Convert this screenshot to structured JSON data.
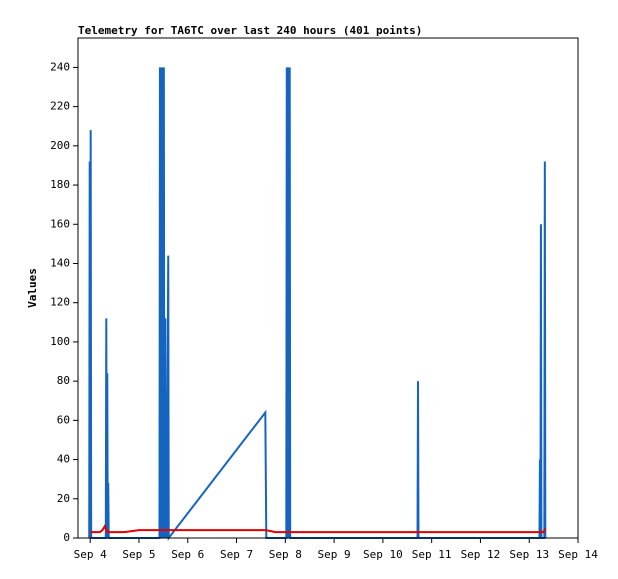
{
  "chart_data": {
    "type": "line",
    "title": "Telemetry for TA6TC over last 240 hours (401 points)",
    "y_label": "Values",
    "xlim": [
      3.75,
      14
    ],
    "xticks": [
      {
        "value": 4,
        "label": "Sep 4"
      },
      {
        "value": 5,
        "label": "Sep 5"
      },
      {
        "value": 6,
        "label": "Sep 6"
      },
      {
        "value": 7,
        "label": "Sep 7"
      },
      {
        "value": 8,
        "label": "Sep 8"
      },
      {
        "value": 9,
        "label": "Sep 9"
      },
      {
        "value": 10,
        "label": "Sep 10"
      },
      {
        "value": 11,
        "label": "Sep 11"
      },
      {
        "value": 12,
        "label": "Sep 12"
      },
      {
        "value": 13,
        "label": "Sep 13"
      },
      {
        "value": 14,
        "label": "Sep 14"
      }
    ],
    "ylim": [
      0,
      255
    ],
    "yticks": [
      0,
      20,
      40,
      60,
      80,
      100,
      120,
      140,
      160,
      180,
      200,
      220,
      240
    ],
    "series": [
      {
        "color": "#1565c0",
        "x": [
          3.98,
          3.99,
          4.0,
          4.01,
          4.02,
          4.32,
          4.33,
          4.34,
          4.35,
          4.36,
          4.37,
          4.38,
          5.42,
          5.43,
          5.45,
          5.46,
          5.48,
          5.49,
          5.5,
          5.51,
          5.52,
          5.54,
          5.55,
          5.56,
          5.57,
          5.6,
          5.61,
          7.59,
          7.61,
          8.02,
          8.03,
          8.05,
          8.06,
          8.08,
          8.09,
          8.1,
          10.71,
          10.72,
          10.73,
          13.21,
          13.22,
          13.23,
          13.24,
          13.25,
          13.31,
          13.32,
          13.33
        ],
        "values": [
          0,
          192,
          0,
          208,
          0,
          0,
          112,
          0,
          84,
          0,
          28,
          0,
          0,
          240,
          0,
          240,
          0,
          240,
          192,
          240,
          0,
          112,
          0,
          32,
          0,
          144,
          0,
          64,
          0,
          0,
          240,
          0,
          240,
          0,
          240,
          0,
          0,
          80,
          0,
          0,
          40,
          0,
          160,
          0,
          0,
          192,
          0
        ]
      },
      {
        "color": "#e00000",
        "x": [
          4.0,
          4.2,
          4.25,
          4.3,
          4.35,
          4.6,
          4.7,
          5.0,
          6.0,
          7.0,
          7.6,
          7.8,
          8.0,
          9.0,
          10.0,
          11.0,
          12.0,
          13.0,
          13.3,
          13.32
        ],
        "values": [
          3,
          3,
          4,
          6,
          3,
          3,
          3,
          4,
          4,
          4,
          4,
          3,
          3,
          3,
          3,
          3,
          3,
          3,
          3,
          5
        ]
      }
    ]
  }
}
